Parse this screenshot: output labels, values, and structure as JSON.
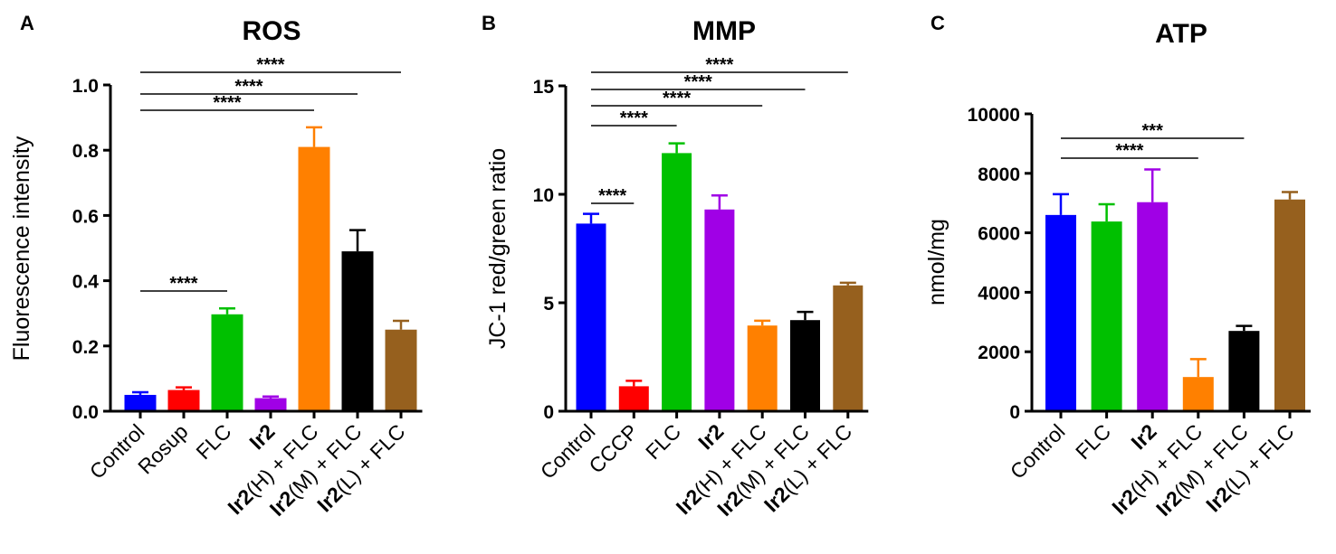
{
  "panels": [
    {
      "letter": "A",
      "title": "ROS"
    },
    {
      "letter": "B",
      "title": "MMP"
    },
    {
      "letter": "C",
      "title": "ATP"
    }
  ],
  "colors": {
    "blue": "#0000ff",
    "red": "#ff0000",
    "green": "#00c000",
    "purple": "#a000e6",
    "orange": "#ff8000",
    "black": "#000000",
    "brown": "#96601e"
  },
  "chart_data": [
    {
      "type": "bar",
      "panel": "A",
      "title": "ROS",
      "xlabel": "",
      "ylabel": "Fluorescence intensity",
      "ylim": [
        0,
        1.0
      ],
      "yticks": [
        "0.0",
        "0.2",
        "0.4",
        "0.6",
        "0.8",
        "1.0"
      ],
      "categories": [
        {
          "base": "Control",
          "bold": "",
          "suffix": ""
        },
        {
          "base": "Rosup",
          "bold": "",
          "suffix": ""
        },
        {
          "base": "FLC",
          "bold": "",
          "suffix": ""
        },
        {
          "base": "",
          "bold": "Ir2",
          "suffix": ""
        },
        {
          "base": "",
          "bold": "Ir2",
          "suffix": "(H) + FLC"
        },
        {
          "base": "",
          "bold": "Ir2",
          "suffix": "(M) + FLC"
        },
        {
          "base": "",
          "bold": "Ir2",
          "suffix": "(L) + FLC"
        }
      ],
      "values": [
        0.05,
        0.065,
        0.297,
        0.04,
        0.81,
        0.49,
        0.25
      ],
      "errors": [
        0.008,
        0.008,
        0.018,
        0.005,
        0.06,
        0.065,
        0.027
      ],
      "colors": [
        "blue",
        "red",
        "green",
        "purple",
        "orange",
        "black",
        "brown"
      ],
      "significance": [
        {
          "from": 0,
          "to": 2,
          "label": "****"
        },
        {
          "from": 0,
          "to": 4,
          "label": "****"
        },
        {
          "from": 0,
          "to": 5,
          "label": "****"
        },
        {
          "from": 0,
          "to": 6,
          "label": "****"
        }
      ]
    },
    {
      "type": "bar",
      "panel": "B",
      "title": "MMP",
      "xlabel": "",
      "ylabel": "JC-1 red/green ratio",
      "ylim": [
        0,
        15
      ],
      "yticks": [
        "0",
        "5",
        "10",
        "15"
      ],
      "categories": [
        {
          "base": "Control",
          "bold": "",
          "suffix": ""
        },
        {
          "base": "CCCP",
          "bold": "",
          "suffix": ""
        },
        {
          "base": "FLC",
          "bold": "",
          "suffix": ""
        },
        {
          "base": "",
          "bold": "Ir2",
          "suffix": ""
        },
        {
          "base": "",
          "bold": "Ir2",
          "suffix": "(H) + FLC"
        },
        {
          "base": "",
          "bold": "Ir2",
          "suffix": "(M) + FLC"
        },
        {
          "base": "",
          "bold": "Ir2",
          "suffix": "(L) + FLC"
        }
      ],
      "values": [
        8.65,
        1.15,
        11.9,
        9.3,
        3.95,
        4.2,
        5.8
      ],
      "errors": [
        0.45,
        0.25,
        0.45,
        0.65,
        0.22,
        0.38,
        0.12
      ],
      "colors": [
        "blue",
        "red",
        "green",
        "purple",
        "orange",
        "black",
        "brown"
      ],
      "significance": [
        {
          "from": 0,
          "to": 1,
          "label": "****"
        },
        {
          "from": 0,
          "to": 2,
          "label": "****"
        },
        {
          "from": 0,
          "to": 4,
          "label": "****"
        },
        {
          "from": 0,
          "to": 5,
          "label": "****"
        },
        {
          "from": 0,
          "to": 6,
          "label": "****"
        }
      ]
    },
    {
      "type": "bar",
      "panel": "C",
      "title": "ATP",
      "xlabel": "",
      "ylabel": "nmol/mg",
      "ylim": [
        0,
        10000
      ],
      "yticks": [
        "0",
        "2000",
        "4000",
        "6000",
        "8000",
        "10000"
      ],
      "categories": [
        {
          "base": "Control",
          "bold": "",
          "suffix": ""
        },
        {
          "base": "FLC",
          "bold": "",
          "suffix": ""
        },
        {
          "base": "",
          "bold": "Ir2",
          "suffix": ""
        },
        {
          "base": "",
          "bold": "Ir2",
          "suffix": "(H) + FLC"
        },
        {
          "base": "",
          "bold": "Ir2",
          "suffix": "(M) + FLC"
        },
        {
          "base": "",
          "bold": "Ir2",
          "suffix": "(L) + FLC"
        }
      ],
      "values": [
        6600,
        6380,
        7030,
        1150,
        2700,
        7120
      ],
      "errors": [
        700,
        580,
        1100,
        600,
        170,
        250
      ],
      "colors": [
        "blue",
        "green",
        "purple",
        "orange",
        "black",
        "brown"
      ],
      "significance": [
        {
          "from": 0,
          "to": 3,
          "label": "****"
        },
        {
          "from": 0,
          "to": 4,
          "label": "***"
        }
      ]
    }
  ]
}
